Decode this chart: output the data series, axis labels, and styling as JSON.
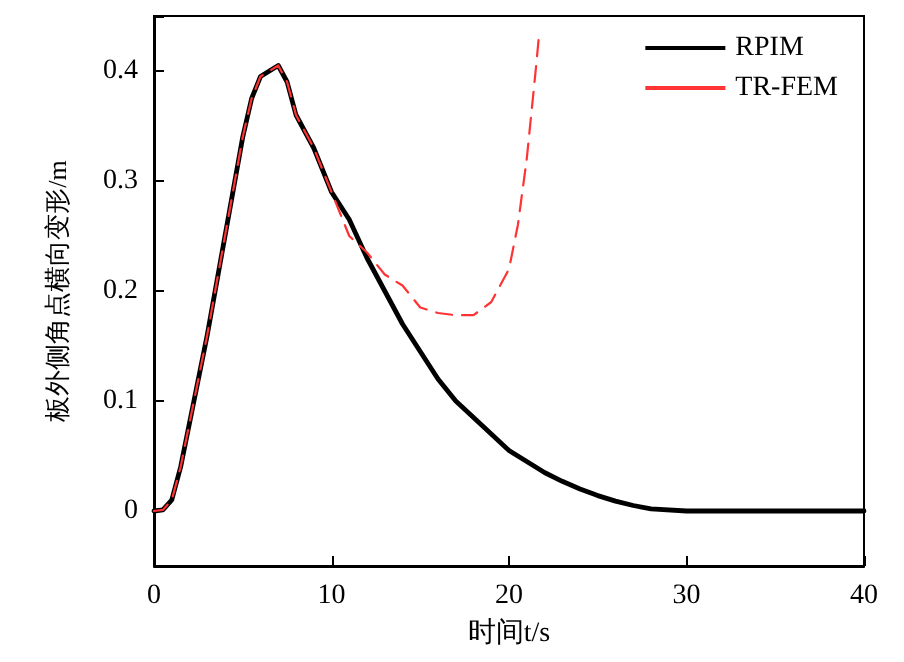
{
  "chart_data": {
    "type": "line",
    "xlabel": "时间t/s",
    "ylabel": "板外侧角点横向变形/m",
    "xlim": [
      0,
      40
    ],
    "xticks": [
      0,
      10,
      20,
      30,
      40
    ],
    "ylim": [
      -0.05,
      0.45
    ],
    "yticks": [
      {
        "value": -0.05,
        "label": null
      },
      0,
      0.1,
      0.2,
      0.3,
      0.4,
      {
        "value": 0.45,
        "label": null
      }
    ],
    "grid": false,
    "legend": "top right",
    "marker": "none",
    "series": [
      {
        "name": "RPIM",
        "color": "#000000",
        "line_style": "solid",
        "x": [
          0,
          0.5,
          1,
          1.5,
          2,
          3,
          4,
          5,
          5.5,
          6,
          7,
          7.5,
          8,
          8.5,
          9,
          10,
          11,
          12,
          13,
          14,
          15,
          16,
          17,
          18,
          19,
          20,
          21,
          22,
          23,
          24,
          25,
          26,
          27,
          28,
          30,
          35,
          40
        ],
        "values": [
          0,
          0.001,
          0.01,
          0.04,
          0.08,
          0.16,
          0.25,
          0.34,
          0.375,
          0.395,
          0.405,
          0.39,
          0.36,
          0.345,
          0.33,
          0.29,
          0.265,
          0.23,
          0.2,
          0.17,
          0.145,
          0.12,
          0.1,
          0.085,
          0.07,
          0.055,
          0.045,
          0.035,
          0.027,
          0.02,
          0.014,
          0.009,
          0.005,
          0.002,
          0,
          0,
          0
        ]
      },
      {
        "name": "TR-FEM",
        "color": "#ff3333",
        "line_style": "dashed",
        "x": [
          0,
          0.5,
          1,
          1.5,
          2,
          3,
          4,
          5,
          5.5,
          6,
          7,
          7.5,
          8,
          8.5,
          9,
          10,
          10.5,
          11,
          12,
          13,
          14,
          15,
          16,
          17,
          18,
          19,
          20,
          20.5,
          21,
          21.5,
          21.7
        ],
        "values": [
          0,
          0.001,
          0.01,
          0.04,
          0.08,
          0.16,
          0.25,
          0.34,
          0.375,
          0.395,
          0.405,
          0.39,
          0.36,
          0.345,
          0.33,
          0.29,
          0.27,
          0.25,
          0.235,
          0.215,
          0.205,
          0.185,
          0.18,
          0.178,
          0.178,
          0.19,
          0.22,
          0.26,
          0.32,
          0.4,
          0.434
        ]
      }
    ]
  }
}
